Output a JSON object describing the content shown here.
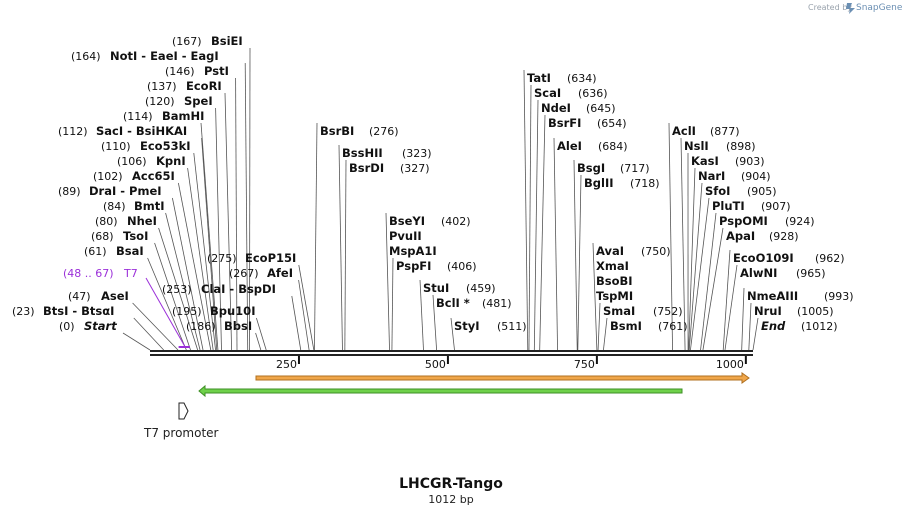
{
  "credit": {
    "prefix": "Created by",
    "brand": "SnapGene"
  },
  "plasmid": {
    "name": "LHCGR-Tango",
    "length_label": "1012 bp",
    "length": 1012
  },
  "ruler": {
    "ticks": [
      "250",
      "500",
      "750",
      "1000"
    ]
  },
  "primer": {
    "name": "T7",
    "range": "(48 .. 67)",
    "color": "#9b30d9"
  },
  "features": [
    {
      "name": "T7 promoter",
      "type": "promoter"
    },
    {
      "name": "",
      "type": "orange-arrow",
      "color": "#f0a64a"
    },
    {
      "name": "",
      "type": "green-arrow",
      "color": "#6fd14a"
    }
  ],
  "enzymes": [
    {
      "id": "start",
      "pos": "(0)",
      "name": "Start",
      "cut": 0
    },
    {
      "id": "btsi",
      "pos": "(23)",
      "name": "BtsI - BtsαI",
      "cut": 23
    },
    {
      "id": "asei",
      "pos": "(47)",
      "name": "AseI",
      "cut": 47
    },
    {
      "id": "bsai",
      "pos": "(61)",
      "name": "BsaI",
      "cut": 61
    },
    {
      "id": "tsoi",
      "pos": "(68)",
      "name": "TsoI",
      "cut": 68
    },
    {
      "id": "nhei",
      "pos": "(80)",
      "name": "NheI",
      "cut": 80
    },
    {
      "id": "bmti",
      "pos": "(84)",
      "name": "BmtI",
      "cut": 84
    },
    {
      "id": "drai",
      "pos": "(89)",
      "name": "DraI - PmeI",
      "cut": 89
    },
    {
      "id": "acc65i",
      "pos": "(102)",
      "name": "Acc65I",
      "cut": 102
    },
    {
      "id": "kpni",
      "pos": "(106)",
      "name": "KpnI",
      "cut": 106
    },
    {
      "id": "eco53ki",
      "pos": "(110)",
      "name": "Eco53kI",
      "cut": 110
    },
    {
      "id": "saci",
      "pos": "(112)",
      "name": "SacI - BsiHKAI",
      "cut": 112
    },
    {
      "id": "bamhi",
      "pos": "(114)",
      "name": "BamHI",
      "cut": 114
    },
    {
      "id": "spei",
      "pos": "(120)",
      "name": "SpeI",
      "cut": 120
    },
    {
      "id": "ecori",
      "pos": "(137)",
      "name": "EcoRI",
      "cut": 137
    },
    {
      "id": "psti",
      "pos": "(146)",
      "name": "PstI",
      "cut": 146
    },
    {
      "id": "noti",
      "pos": "(164)",
      "name": "NotI - EaeI - EagI",
      "cut": 164
    },
    {
      "id": "bsiei",
      "pos": "(167)",
      "name": "BsiEI",
      "cut": 167
    },
    {
      "id": "bbsi",
      "pos": "(186)",
      "name": "BbsI",
      "cut": 186
    },
    {
      "id": "bpu10i",
      "pos": "(195)",
      "name": "Bpu10I",
      "cut": 195
    },
    {
      "id": "clai",
      "pos": "(253)",
      "name": "ClaI - BspDI",
      "cut": 253
    },
    {
      "id": "afei",
      "pos": "(267)",
      "name": "AfeI",
      "cut": 267
    },
    {
      "id": "ecop15i",
      "pos": "(275)",
      "name": "EcoP15I",
      "cut": 275
    },
    {
      "id": "bsrbi",
      "pos": "(276)",
      "name": "BsrBI",
      "cut": 276
    },
    {
      "id": "bsshii",
      "pos": "(323)",
      "name": "BssHII",
      "cut": 323
    },
    {
      "id": "bsrdi",
      "pos": "(327)",
      "name": "BsrDI",
      "cut": 327
    },
    {
      "id": "bseyi",
      "pos": "(402)",
      "name": "BseYI",
      "cut": 402
    },
    {
      "id": "pvuii",
      "pos": "",
      "name": "PvuII",
      "cut": 402
    },
    {
      "id": "mspa1i",
      "pos": "",
      "name": "MspA1I",
      "cut": 402
    },
    {
      "id": "pspfi",
      "pos": "(406)",
      "name": "PspFI",
      "cut": 406
    },
    {
      "id": "stui",
      "pos": "(459)",
      "name": "StuI",
      "cut": 459
    },
    {
      "id": "bcli",
      "pos": "(481)",
      "name": "BclI *",
      "cut": 481
    },
    {
      "id": "styi",
      "pos": "(511)",
      "name": "StyI",
      "cut": 511
    },
    {
      "id": "tati",
      "pos": "(634)",
      "name": "TatI",
      "cut": 634
    },
    {
      "id": "scai",
      "pos": "(636)",
      "name": "ScaI",
      "cut": 636
    },
    {
      "id": "ndei",
      "pos": "(645)",
      "name": "NdeI",
      "cut": 645
    },
    {
      "id": "bsrfi",
      "pos": "(654)",
      "name": "BsrFI",
      "cut": 654
    },
    {
      "id": "alei",
      "pos": "(684)",
      "name": "AleI",
      "cut": 684
    },
    {
      "id": "bsgi",
      "pos": "(717)",
      "name": "BsgI",
      "cut": 717
    },
    {
      "id": "bglii",
      "pos": "(718)",
      "name": "BglII",
      "cut": 718
    },
    {
      "id": "avai",
      "pos": "(750)",
      "name": "AvaI",
      "cut": 750
    },
    {
      "id": "xmai",
      "pos": "",
      "name": "XmaI",
      "cut": 750
    },
    {
      "id": "bsobi",
      "pos": "",
      "name": "BsoBI",
      "cut": 750
    },
    {
      "id": "tspmi",
      "pos": "",
      "name": "TspMI",
      "cut": 750
    },
    {
      "id": "smai",
      "pos": "(752)",
      "name": "SmaI",
      "cut": 752
    },
    {
      "id": "bsmi",
      "pos": "(761)",
      "name": "BsmI",
      "cut": 761
    },
    {
      "id": "acli",
      "pos": "(877)",
      "name": "AclI",
      "cut": 877
    },
    {
      "id": "nsli",
      "pos": "(898)",
      "name": "NslI",
      "cut": 898
    },
    {
      "id": "kasi",
      "pos": "(903)",
      "name": "KasI",
      "cut": 903
    },
    {
      "id": "nari",
      "pos": "(904)",
      "name": "NarI",
      "cut": 904
    },
    {
      "id": "sfoi",
      "pos": "(905)",
      "name": "SfoI",
      "cut": 905
    },
    {
      "id": "pluti",
      "pos": "(907)",
      "name": "PluTI",
      "cut": 907
    },
    {
      "id": "pspomi",
      "pos": "(924)",
      "name": "PspOMI",
      "cut": 924
    },
    {
      "id": "apai",
      "pos": "(928)",
      "name": "ApaI",
      "cut": 928
    },
    {
      "id": "ecoo109i",
      "pos": "(962)",
      "name": "EcoO109I",
      "cut": 962
    },
    {
      "id": "alwni",
      "pos": "(965)",
      "name": "AlwNI",
      "cut": 965
    },
    {
      "id": "nmeaiii",
      "pos": "(993)",
      "name": "NmeAIII",
      "cut": 993
    },
    {
      "id": "nrui",
      "pos": "(1005)",
      "name": "NruI",
      "cut": 1005
    },
    {
      "id": "end",
      "pos": "(1012)",
      "name": "End",
      "cut": 1012
    }
  ]
}
